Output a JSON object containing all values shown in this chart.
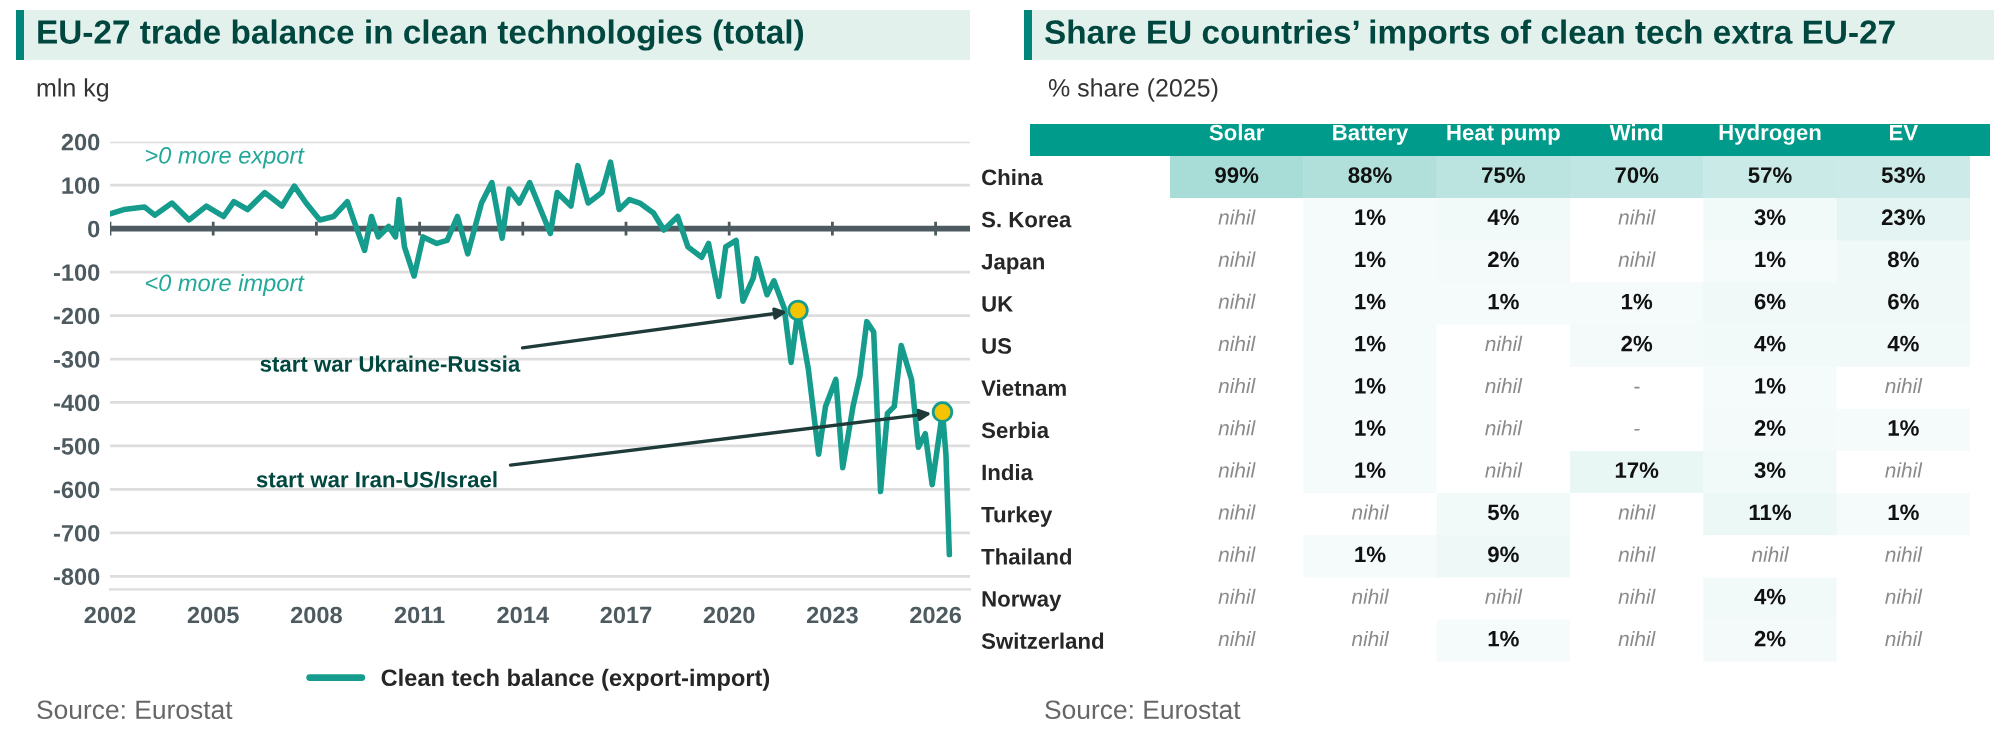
{
  "chart_data": [
    {
      "type": "line",
      "title": "EU-27 trade balance in clean technologies (total)",
      "ylabel": "mln kg",
      "x": [
        2002.0,
        2002.4,
        2003.0,
        2003.3,
        2003.8,
        2004.3,
        2004.8,
        2005.3,
        2005.6,
        2006.0,
        2006.5,
        2007.0,
        2007.36,
        2007.7,
        2008.1,
        2008.5,
        2008.9,
        2009.1,
        2009.4,
        2009.6,
        2009.8,
        2010.1,
        2010.3,
        2010.4,
        2010.56,
        2010.84,
        2011.1,
        2011.5,
        2011.8,
        2012.1,
        2012.4,
        2012.8,
        2013.1,
        2013.4,
        2013.6,
        2013.9,
        2014.2,
        2014.6,
        2014.8,
        2015.0,
        2015.4,
        2015.6,
        2015.9,
        2016.3,
        2016.55,
        2016.8,
        2017.1,
        2017.4,
        2017.8,
        2018.1,
        2018.5,
        2018.8,
        2019.2,
        2019.4,
        2019.7,
        2019.9,
        2020.2,
        2020.4,
        2020.7,
        2020.8,
        2021.1,
        2021.3,
        2021.6,
        2021.8,
        2022.0,
        2022.3,
        2022.6,
        2022.8,
        2023.1,
        2023.3,
        2023.6,
        2023.8,
        2024.0,
        2024.2,
        2024.4,
        2024.6,
        2024.8,
        2025.0,
        2025.3,
        2025.5,
        2025.7,
        2025.9,
        2026.2,
        2026.3,
        2026.4
      ],
      "series": [
        {
          "name": "Clean tech balance (export-import)",
          "color": "#169c8c",
          "values": [
            34,
            44,
            50,
            31,
            59,
            20,
            52,
            28,
            62,
            44,
            83,
            52,
            98,
            59,
            20,
            28,
            62,
            16,
            -50,
            28,
            -19,
            5,
            -19,
            67,
            -42,
            -109,
            -19,
            -34,
            -27,
            28,
            -58,
            59,
            106,
            -22,
            91,
            59,
            106,
            28,
            -11,
            83,
            52,
            145,
            59,
            83,
            153,
            44,
            67,
            59,
            36,
            -3,
            28,
            -42,
            -66,
            -34,
            -156,
            -42,
            -27,
            -167,
            -113,
            -69,
            -152,
            -120,
            -183,
            -308,
            -188,
            -323,
            -519,
            -409,
            -347,
            -550,
            -409,
            -339,
            -214,
            -238,
            -605,
            -425,
            -409,
            -269,
            -347,
            -503,
            -472,
            -589,
            -422,
            -519,
            -750
          ]
        }
      ],
      "xlim": [
        2002,
        2027
      ],
      "xticks": [
        2002,
        2005,
        2008,
        2011,
        2014,
        2017,
        2020,
        2023,
        2026
      ],
      "ylim": [
        -830,
        200
      ],
      "yticks": [
        -800,
        -700,
        -600,
        -500,
        -400,
        -300,
        -200,
        -100,
        0,
        100,
        200
      ],
      "grid": "y",
      "legend": "bottom",
      "marker": "none",
      "line_style": "solid",
      "ref_lines": [
        {
          "axis": "y",
          "value": 0,
          "color": "#4d5b60"
        }
      ],
      "annotations": [
        ">0 more export",
        "<0 more import",
        {
          "text": "start war Ukraine-Russia",
          "x": 2022.0,
          "y": -188
        },
        {
          "text": "start war Iran-US/Israel",
          "x": 2026.2,
          "y": -422
        },
        "Source: Eurostat"
      ]
    },
    {
      "type": "heatmap",
      "title": "Share EU countries’ imports of clean tech extra EU-27",
      "subtitle": "% share (2025)",
      "categories": [
        "Solar",
        "Battery",
        "Heat pump",
        "Wind",
        "Hydrogen",
        "EV"
      ],
      "y_categories": [
        "China",
        "S. Korea",
        "Japan",
        "UK",
        "US",
        "Vietnam",
        "Serbia",
        "India",
        "Turkey",
        "Thailand",
        "Norway",
        "Switzerland"
      ],
      "cells": [
        [
          99,
          88,
          75,
          70,
          57,
          53
        ],
        [
          null,
          1,
          4,
          null,
          3,
          23
        ],
        [
          null,
          1,
          2,
          null,
          1,
          8
        ],
        [
          null,
          1,
          1,
          1,
          6,
          6
        ],
        [
          null,
          1,
          null,
          2,
          4,
          4
        ],
        [
          null,
          1,
          null,
          null,
          1,
          null
        ],
        [
          null,
          1,
          null,
          null,
          2,
          1
        ],
        [
          null,
          1,
          null,
          17,
          3,
          null
        ],
        [
          null,
          null,
          5,
          null,
          11,
          1
        ],
        [
          null,
          1,
          9,
          null,
          null,
          null
        ],
        [
          null,
          null,
          null,
          null,
          4,
          null
        ],
        [
          null,
          null,
          1,
          null,
          2,
          null
        ]
      ],
      "cell_labels": [
        [
          "99%",
          "88%",
          "75%",
          "70%",
          "57%",
          "53%"
        ],
        [
          "nihil",
          "1%",
          "4%",
          "nihil",
          "3%",
          "23%"
        ],
        [
          "nihil",
          "1%",
          "2%",
          "nihil",
          "1%",
          "8%"
        ],
        [
          "nihil",
          "1%",
          "1%",
          "1%",
          "6%",
          "6%"
        ],
        [
          "nihil",
          "1%",
          "nihil",
          "2%",
          "4%",
          "4%"
        ],
        [
          "nihil",
          "1%",
          "nihil",
          "-",
          "1%",
          "nihil"
        ],
        [
          "nihil",
          "1%",
          "nihil",
          "-",
          "2%",
          "1%"
        ],
        [
          "nihil",
          "1%",
          "nihil",
          "17%",
          "3%",
          "nihil"
        ],
        [
          "nihil",
          "nihil",
          "5%",
          "nihil",
          "11%",
          "1%"
        ],
        [
          "nihil",
          "1%",
          "9%",
          "nihil",
          "nihil",
          "nihil"
        ],
        [
          "nihil",
          "nihil",
          "nihil",
          "nihil",
          "4%",
          "nihil"
        ],
        [
          "nihil",
          "nihil",
          "1%",
          "nihil",
          "2%",
          "nihil"
        ]
      ],
      "annotations": [
        "Source: Eurostat"
      ]
    }
  ]
}
